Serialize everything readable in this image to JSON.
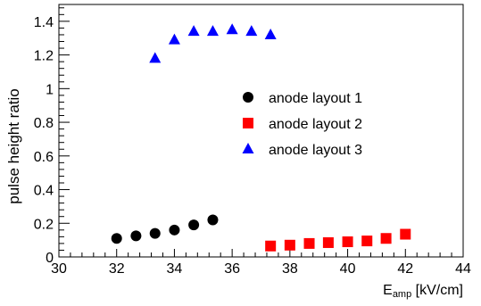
{
  "chart_data": {
    "type": "scatter",
    "title": "",
    "xlabel_main": "E",
    "xlabel_sub": "amp",
    "xlabel_unit": " [kV/cm]",
    "ylabel": "pulse height ratio",
    "xlim": [
      30,
      44
    ],
    "ylim": [
      0,
      1.5
    ],
    "x_ticks": [
      {
        "value": 30,
        "label": "30"
      },
      {
        "value": 32,
        "label": "32"
      },
      {
        "value": 34,
        "label": "34"
      },
      {
        "value": 36,
        "label": "36"
      },
      {
        "value": 38,
        "label": "38"
      },
      {
        "value": 40,
        "label": "40"
      },
      {
        "value": 42,
        "label": "42"
      },
      {
        "value": 44,
        "label": "44"
      }
    ],
    "y_ticks": [
      {
        "value": 0,
        "label": "0"
      },
      {
        "value": 0.2,
        "label": "0.2"
      },
      {
        "value": 0.4,
        "label": "0.4"
      },
      {
        "value": 0.6,
        "label": "0.6"
      },
      {
        "value": 0.8,
        "label": "0.8"
      },
      {
        "value": 1,
        "label": "1"
      },
      {
        "value": 1.2,
        "label": "1.2"
      },
      {
        "value": 1.4,
        "label": "1.4"
      }
    ],
    "grid": false,
    "legend_position": "center-right",
    "series": [
      {
        "name": "anode layout 1",
        "marker": "circle",
        "color": "#000000",
        "points": [
          {
            "x": 32.0,
            "y": 0.11
          },
          {
            "x": 32.67,
            "y": 0.125
          },
          {
            "x": 33.33,
            "y": 0.14
          },
          {
            "x": 34.0,
            "y": 0.16
          },
          {
            "x": 34.67,
            "y": 0.19
          },
          {
            "x": 35.33,
            "y": 0.22
          }
        ]
      },
      {
        "name": "anode layout 2",
        "marker": "square",
        "color": "#ff0000",
        "points": [
          {
            "x": 37.33,
            "y": 0.065
          },
          {
            "x": 38.0,
            "y": 0.07
          },
          {
            "x": 38.67,
            "y": 0.08
          },
          {
            "x": 39.33,
            "y": 0.085
          },
          {
            "x": 40.0,
            "y": 0.09
          },
          {
            "x": 40.67,
            "y": 0.095
          },
          {
            "x": 41.33,
            "y": 0.11
          },
          {
            "x": 42.0,
            "y": 0.135
          }
        ]
      },
      {
        "name": "anode layout 3",
        "marker": "triangle",
        "color": "#0000ff",
        "points": [
          {
            "x": 33.33,
            "y": 1.18
          },
          {
            "x": 34.0,
            "y": 1.29
          },
          {
            "x": 34.67,
            "y": 1.34
          },
          {
            "x": 35.33,
            "y": 1.34
          },
          {
            "x": 36.0,
            "y": 1.35
          },
          {
            "x": 36.67,
            "y": 1.34
          },
          {
            "x": 37.33,
            "y": 1.32
          }
        ]
      }
    ]
  }
}
